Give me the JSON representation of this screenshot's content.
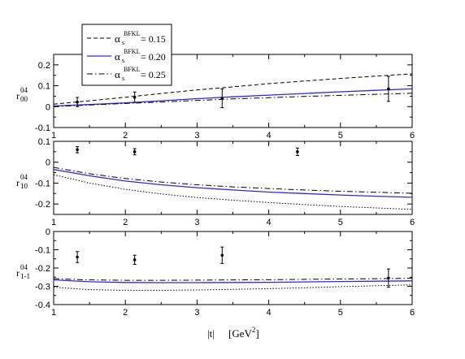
{
  "chart_data": {
    "type": "line",
    "xlabel_main": "|t|",
    "xlabel_unit": "[GeV",
    "xlabel_unit_sup": "2",
    "xlabel_unit_close": "]",
    "xlim": [
      1,
      6
    ],
    "xticks": [
      1,
      2,
      3,
      4,
      5,
      6
    ],
    "legend": {
      "placement": "top-left",
      "entries": [
        {
          "alpha": "α",
          "sub": "s",
          "sup": "BFKL",
          "value": "= 0.15",
          "style": "dashed",
          "color": "#000000"
        },
        {
          "alpha": "α",
          "sub": "s",
          "sup": "BFKL",
          "value": "= 0.20",
          "style": "solid",
          "color": "#2a2ae6"
        },
        {
          "alpha": "α",
          "sub": "s",
          "sup": "BFKL",
          "value": "= 0.25",
          "style": "dashdot",
          "color": "#000000"
        }
      ]
    },
    "panels": [
      {
        "ylabel_base": "r",
        "ylabel_sup": "04",
        "ylabel_sub": "00",
        "ylim": [
          -0.1,
          0.25
        ],
        "yticks": [
          -0.1,
          0,
          0.1,
          0.2
        ],
        "ytick_labels": [
          "-0.1",
          "0",
          "0.1",
          "0.2"
        ],
        "series": [
          {
            "style": "dashed",
            "color": "#000000",
            "x": [
              1.0,
              1.5,
              2.0,
              2.5,
              3.0,
              3.5,
              4.0,
              4.5,
              5.0,
              5.5,
              6.0
            ],
            "y": [
              0.012,
              0.028,
              0.045,
              0.063,
              0.08,
              0.095,
              0.11,
              0.123,
              0.135,
              0.146,
              0.157
            ]
          },
          {
            "style": "solid",
            "color": "#2a2ae6",
            "x": [
              1.0,
              1.5,
              2.0,
              2.5,
              3.0,
              3.5,
              4.0,
              4.5,
              5.0,
              5.5,
              6.0
            ],
            "y": [
              0.003,
              0.01,
              0.018,
              0.028,
              0.038,
              0.047,
              0.055,
              0.063,
              0.071,
              0.078,
              0.085
            ]
          },
          {
            "style": "dashdot",
            "color": "#000000",
            "x": [
              1.0,
              1.5,
              2.0,
              2.5,
              3.0,
              3.5,
              4.0,
              4.5,
              5.0,
              5.5,
              6.0
            ],
            "y": [
              0.0,
              0.008,
              0.015,
              0.022,
              0.03,
              0.037,
              0.043,
              0.049,
              0.054,
              0.059,
              0.064
            ]
          }
        ],
        "points": [
          {
            "x": 1.33,
            "y": 0.022,
            "err": 0.022
          },
          {
            "x": 2.13,
            "y": 0.045,
            "err": 0.025
          },
          {
            "x": 3.35,
            "y": 0.04,
            "err": 0.045
          },
          {
            "x": 5.67,
            "y": 0.085,
            "err": 0.06
          }
        ]
      },
      {
        "ylabel_base": "r",
        "ylabel_sup": "04",
        "ylabel_sub": "10",
        "ylim": [
          -0.25,
          0.1
        ],
        "yticks": [
          -0.2,
          -0.1,
          0,
          0.1
        ],
        "ytick_labels": [
          "-0.2",
          "-0.1",
          "0",
          "0.1"
        ],
        "series": [
          {
            "style": "dashdot",
            "color": "#000000",
            "x": [
              1.0,
              1.5,
              2.0,
              2.5,
              3.0,
              3.5,
              4.0,
              4.5,
              5.0,
              5.5,
              6.0
            ],
            "y": [
              -0.025,
              -0.055,
              -0.078,
              -0.095,
              -0.108,
              -0.118,
              -0.126,
              -0.133,
              -0.139,
              -0.144,
              -0.149
            ]
          },
          {
            "style": "solid",
            "color": "#2a2ae6",
            "x": [
              1.0,
              1.5,
              2.0,
              2.5,
              3.0,
              3.5,
              4.0,
              4.5,
              5.0,
              5.5,
              6.0
            ],
            "y": [
              -0.035,
              -0.065,
              -0.09,
              -0.108,
              -0.122,
              -0.133,
              -0.143,
              -0.15,
              -0.157,
              -0.163,
              -0.168
            ]
          },
          {
            "style": "dotted",
            "color": "#000000",
            "x": [
              1.0,
              1.5,
              2.0,
              2.5,
              3.0,
              3.5,
              4.0,
              4.5,
              5.0,
              5.5,
              6.0
            ],
            "y": [
              -0.06,
              -0.1,
              -0.13,
              -0.152,
              -0.169,
              -0.182,
              -0.193,
              -0.203,
              -0.212,
              -0.219,
              -0.226
            ]
          }
        ],
        "points": [
          {
            "x": 1.33,
            "y": 0.06,
            "err": 0.015
          },
          {
            "x": 2.13,
            "y": 0.05,
            "err": 0.015
          },
          {
            "x": 4.4,
            "y": 0.05,
            "err": 0.018
          }
        ]
      },
      {
        "ylabel_base": "r",
        "ylabel_sup": "04",
        "ylabel_sub": "1-1",
        "ylim": [
          -0.4,
          0
        ],
        "yticks": [
          -0.4,
          -0.3,
          -0.2,
          -0.1,
          0
        ],
        "ytick_labels": [
          "-0.4",
          "-0.3",
          "-0.2",
          "-0.1",
          "0"
        ],
        "series": [
          {
            "style": "dashdot",
            "color": "#000000",
            "x": [
              1.0,
              1.5,
              2.0,
              2.5,
              3.0,
              3.5,
              4.0,
              4.5,
              5.0,
              5.5,
              6.0
            ],
            "y": [
              -0.258,
              -0.265,
              -0.267,
              -0.267,
              -0.266,
              -0.265,
              -0.264,
              -0.262,
              -0.26,
              -0.258,
              -0.256
            ]
          },
          {
            "style": "solid",
            "color": "#2a2ae6",
            "x": [
              1.0,
              1.5,
              2.0,
              2.5,
              3.0,
              3.5,
              4.0,
              4.5,
              5.0,
              5.5,
              6.0
            ],
            "y": [
              -0.265,
              -0.275,
              -0.279,
              -0.28,
              -0.28,
              -0.279,
              -0.278,
              -0.276,
              -0.274,
              -0.272,
              -0.27
            ]
          },
          {
            "style": "dotted",
            "color": "#000000",
            "x": [
              1.0,
              1.5,
              2.0,
              2.5,
              3.0,
              3.5,
              4.0,
              4.5,
              5.0,
              5.5,
              6.0
            ],
            "y": [
              -0.305,
              -0.318,
              -0.322,
              -0.322,
              -0.32,
              -0.317,
              -0.313,
              -0.308,
              -0.302,
              -0.297,
              -0.292
            ]
          }
        ],
        "points": [
          {
            "x": 1.33,
            "y": -0.14,
            "err": 0.03
          },
          {
            "x": 2.13,
            "y": -0.155,
            "err": 0.025
          },
          {
            "x": 3.35,
            "y": -0.13,
            "err": 0.045
          },
          {
            "x": 5.67,
            "y": -0.255,
            "err": 0.05
          }
        ]
      }
    ]
  }
}
